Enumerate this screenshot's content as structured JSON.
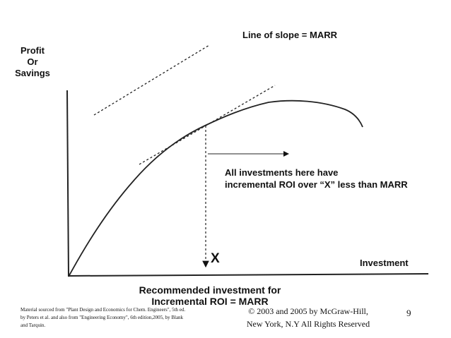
{
  "diagram": {
    "y_axis_label": [
      "Profit",
      "Or",
      "Savings"
    ],
    "x_axis_label": "Investment",
    "slope_line_label": "Line of slope = MARR",
    "annotation": [
      "All investments here have",
      "incremental ROI over “X” less than MARR"
    ],
    "x_marker": "X",
    "recommended_label": [
      "Recommended investment for",
      "Incremental ROI = MARR"
    ]
  },
  "footer": {
    "source_note": [
      "Material sourced from \"Plant Design and Economics for Chem. Engineers\", 5th ed.",
      "by Peters et al. and also from \"Engineering Economy\", 6th edition,2005, by Blank",
      "and Tarquin."
    ],
    "copyright": [
      "© 2003 and 2005 by McGraw-Hill,",
      "New York, N.Y All Rights Reserved"
    ],
    "page_number": "9"
  }
}
